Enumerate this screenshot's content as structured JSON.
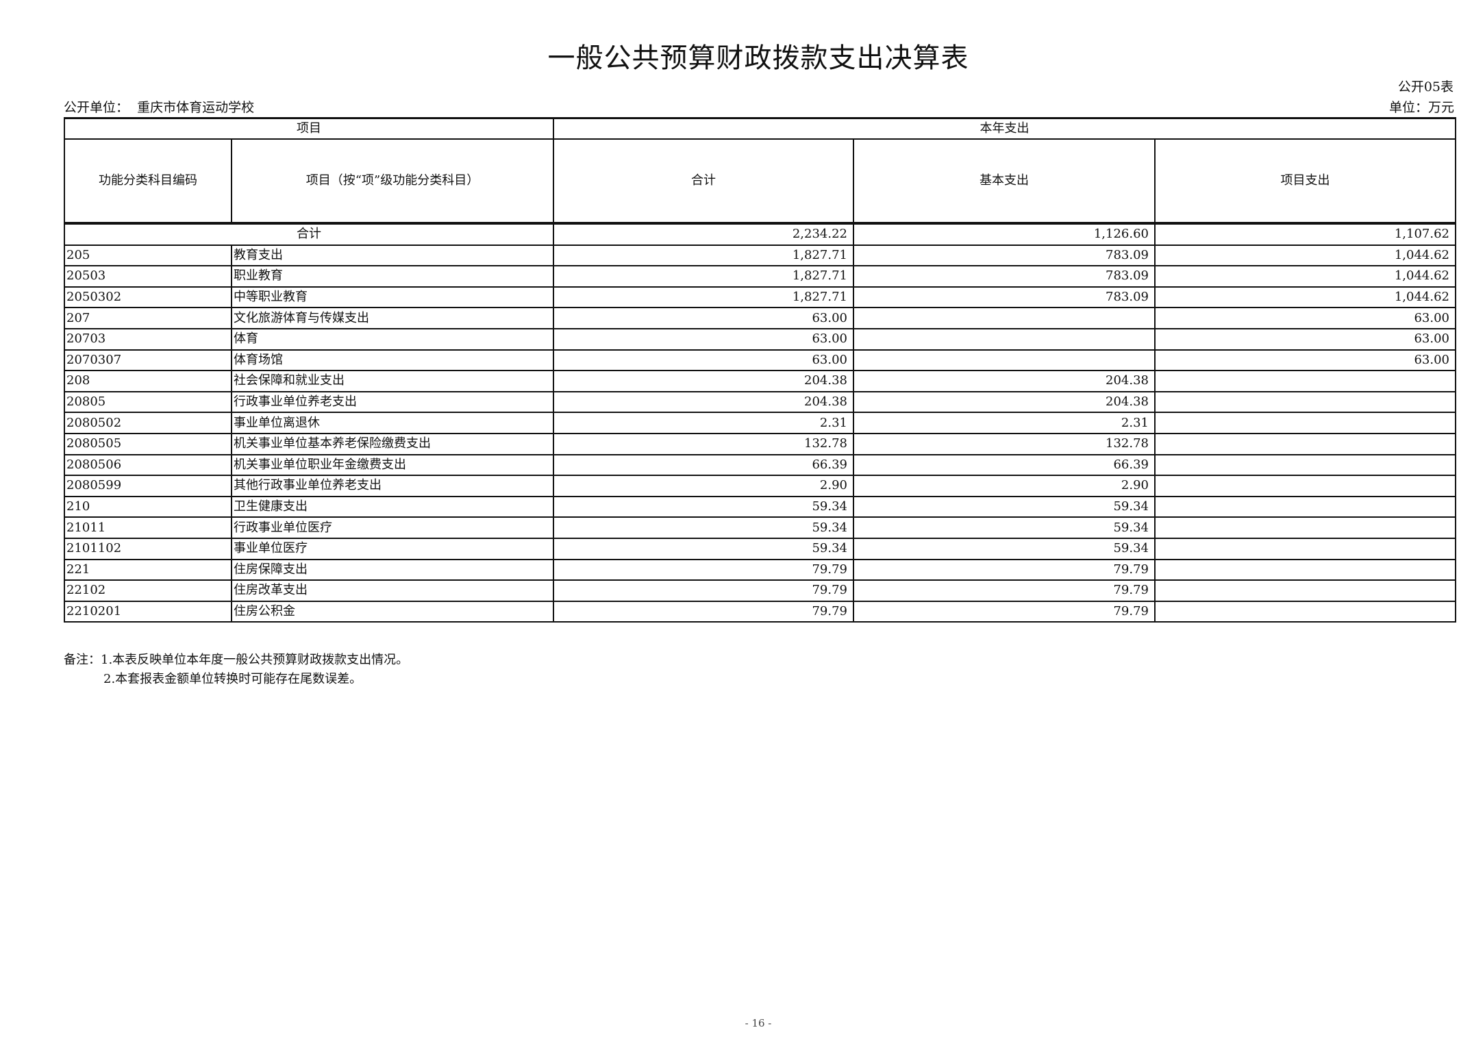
{
  "title": "一般公共预算财政拨款支出决算表",
  "form_no": "公开05表",
  "unit_label": "公开单位：",
  "unit_name": "重庆市体育运动学校",
  "currency_unit": "单位：万元",
  "header": {
    "project": "项目",
    "current_year": "本年支出",
    "code": "功能分类科目编码",
    "name": "项目（按“项”级功能分类科目）",
    "total": "合计",
    "basic": "基本支出",
    "project_exp": "项目支出"
  },
  "total_row": {
    "label": "合计",
    "total": "2,234.22",
    "basic": "1,126.60",
    "project": "1,107.62"
  },
  "rows": [
    {
      "code": "205",
      "name": "教育支出",
      "total": "1,827.71",
      "basic": "783.09",
      "project": "1,044.62"
    },
    {
      "code": "20503",
      "name": "职业教育",
      "total": "1,827.71",
      "basic": "783.09",
      "project": "1,044.62"
    },
    {
      "code": "2050302",
      "name": "中等职业教育",
      "total": "1,827.71",
      "basic": "783.09",
      "project": "1,044.62"
    },
    {
      "code": "207",
      "name": "文化旅游体育与传媒支出",
      "total": "63.00",
      "basic": "",
      "project": "63.00"
    },
    {
      "code": "20703",
      "name": "体育",
      "total": "63.00",
      "basic": "",
      "project": "63.00"
    },
    {
      "code": "2070307",
      "name": "体育场馆",
      "total": "63.00",
      "basic": "",
      "project": "63.00"
    },
    {
      "code": "208",
      "name": "社会保障和就业支出",
      "total": "204.38",
      "basic": "204.38",
      "project": ""
    },
    {
      "code": "20805",
      "name": "行政事业单位养老支出",
      "total": "204.38",
      "basic": "204.38",
      "project": ""
    },
    {
      "code": "2080502",
      "name": "事业单位离退休",
      "total": "2.31",
      "basic": "2.31",
      "project": ""
    },
    {
      "code": "2080505",
      "name": "机关事业单位基本养老保险缴费支出",
      "total": "132.78",
      "basic": "132.78",
      "project": ""
    },
    {
      "code": "2080506",
      "name": "机关事业单位职业年金缴费支出",
      "total": "66.39",
      "basic": "66.39",
      "project": ""
    },
    {
      "code": "2080599",
      "name": "其他行政事业单位养老支出",
      "total": "2.90",
      "basic": "2.90",
      "project": ""
    },
    {
      "code": "210",
      "name": "卫生健康支出",
      "total": "59.34",
      "basic": "59.34",
      "project": ""
    },
    {
      "code": "21011",
      "name": "行政事业单位医疗",
      "total": "59.34",
      "basic": "59.34",
      "project": ""
    },
    {
      "code": "2101102",
      "name": "事业单位医疗",
      "total": "59.34",
      "basic": "59.34",
      "project": ""
    },
    {
      "code": "221",
      "name": "住房保障支出",
      "total": "79.79",
      "basic": "79.79",
      "project": ""
    },
    {
      "code": "22102",
      "name": "住房改革支出",
      "total": "79.79",
      "basic": "79.79",
      "project": ""
    },
    {
      "code": "2210201",
      "name": "住房公积金",
      "total": "79.79",
      "basic": "79.79",
      "project": ""
    }
  ],
  "notes": [
    "备注：1.本表反映单位本年度一般公共预算财政拨款支出情况。",
    "2.本套报表金额单位转换时可能存在尾数误差。"
  ],
  "page_number": "- 16 -"
}
